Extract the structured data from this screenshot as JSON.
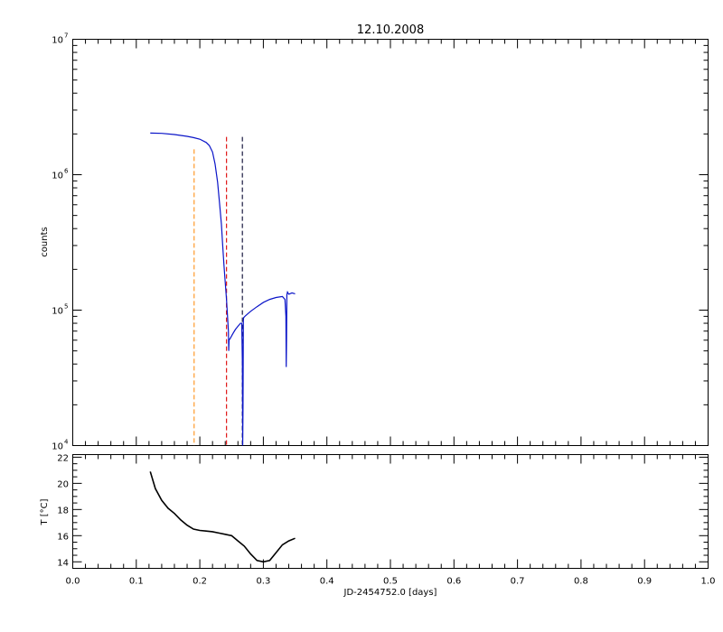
{
  "title": "12.10.2008",
  "colors": {
    "counts_series": "#0a14c8",
    "temperature_series": "#000000",
    "marker_orange": "#ff9a2a",
    "marker_red": "#e01818",
    "marker_dark": "#1a1a40"
  },
  "chart_data": [
    {
      "type": "line",
      "panel": "top",
      "ylabel": "counts",
      "yscale": "log",
      "ylim": [
        10000,
        10000000
      ],
      "xlim": [
        0.0,
        1.0
      ],
      "y_tick_labels": [
        {
          "base": "10",
          "exp": "4",
          "value": 10000
        },
        {
          "base": "10",
          "exp": "5",
          "value": 100000
        },
        {
          "base": "10",
          "exp": "6",
          "value": 1000000
        },
        {
          "base": "10",
          "exp": "7",
          "value": 10000000
        }
      ],
      "series": [
        {
          "x": [
            0.122,
            0.14,
            0.16,
            0.18,
            0.19,
            0.2,
            0.21,
            0.215,
            0.22,
            0.224,
            0.228,
            0.231,
            0.234,
            0.236,
            0.238,
            0.24,
            0.242,
            0.2435,
            0.245,
            0.2455,
            0.246,
            0.248,
            0.252,
            0.256,
            0.26,
            0.264,
            0.266,
            0.267,
            0.2675,
            0.268,
            0.2685,
            0.269,
            0.272,
            0.28,
            0.29,
            0.3,
            0.31,
            0.32,
            0.33,
            0.334,
            0.3355,
            0.336,
            0.3365,
            0.337,
            0.338,
            0.34,
            0.345,
            0.35
          ],
          "values": [
            2030000,
            2020000,
            1980000,
            1920000,
            1880000,
            1830000,
            1730000,
            1640000,
            1470000,
            1200000,
            880000,
            620000,
            430000,
            300000,
            215000,
            160000,
            120000,
            92000,
            70000,
            50000,
            60000,
            62000,
            67000,
            72000,
            76000,
            80000,
            80000,
            40000,
            10000,
            20000,
            84000,
            88000,
            91000,
            98000,
            106000,
            114000,
            120000,
            124000,
            126000,
            120000,
            90000,
            38000,
            60000,
            130000,
            136000,
            131000,
            134000,
            132000
          ]
        }
      ],
      "vlines": [
        {
          "x": 0.191,
          "color": "#ff9a2a",
          "y_top": 1540000,
          "y_bottom": 10000
        },
        {
          "x": 0.242,
          "color": "#e01818",
          "y_top": 1900000,
          "y_bottom": 10000
        },
        {
          "x": 0.267,
          "color": "#1a1a40",
          "y_top": 1900000,
          "y_bottom": 10000
        }
      ]
    },
    {
      "type": "line",
      "panel": "bottom",
      "xlabel": "JD-2454752.0 [days]",
      "ylabel": "T [°C]",
      "xlim": [
        0.0,
        1.0
      ],
      "ylim": [
        13.5,
        22.2
      ],
      "y_ticks": [
        14,
        16,
        18,
        20,
        22
      ],
      "x_ticks": [
        0.0,
        0.1,
        0.2,
        0.3,
        0.4,
        0.5,
        0.6,
        0.7,
        0.8,
        0.9,
        1.0
      ],
      "x_tick_labels": [
        "0.0",
        "0.1",
        "0.2",
        "0.3",
        "0.4",
        "0.5",
        "0.6",
        "0.7",
        "0.8",
        "0.9",
        "1.0"
      ],
      "series": [
        {
          "x": [
            0.122,
            0.13,
            0.14,
            0.15,
            0.16,
            0.17,
            0.18,
            0.19,
            0.2,
            0.21,
            0.22,
            0.23,
            0.24,
            0.25,
            0.26,
            0.27,
            0.28,
            0.29,
            0.3,
            0.31,
            0.32,
            0.33,
            0.34,
            0.35
          ],
          "values": [
            20.9,
            19.6,
            18.7,
            18.1,
            17.7,
            17.2,
            16.8,
            16.5,
            16.4,
            16.35,
            16.3,
            16.2,
            16.1,
            16.0,
            15.6,
            15.2,
            14.6,
            14.1,
            14.0,
            14.1,
            14.7,
            15.3,
            15.6,
            15.8
          ]
        }
      ]
    }
  ]
}
